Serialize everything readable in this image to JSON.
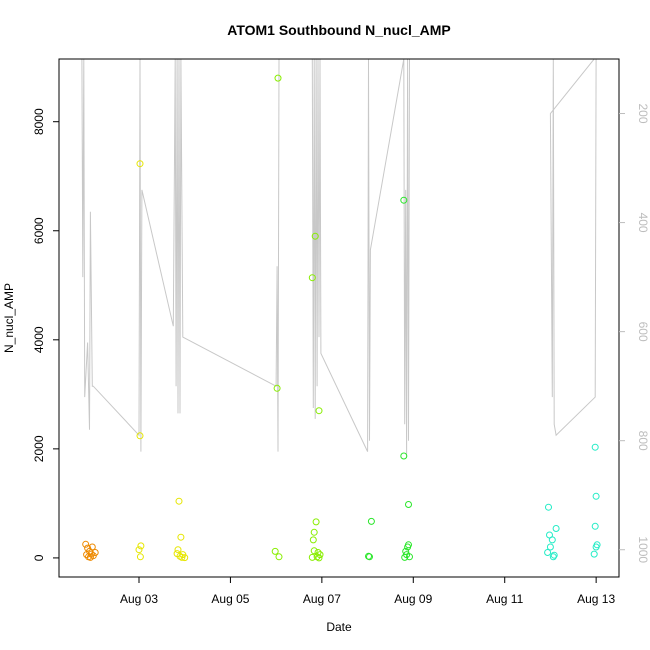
{
  "chart_data": {
    "type": "scatter",
    "title": "ATOM1 Southbound N_nucl_AMP",
    "xlabel": "Date",
    "ylabel": "N_nucl_AMP",
    "x_tick_labels": [
      "Aug 03",
      "Aug 05",
      "Aug 07",
      "Aug 09",
      "Aug 11",
      "Aug 13"
    ],
    "x_tick_dates": [
      "2019-08-03",
      "2019-08-05",
      "2019-08-07",
      "2019-08-09",
      "2019-08-11",
      "2019-08-13"
    ],
    "xlim": [
      "2019-08-01T06:00",
      "2019-08-13T12:00"
    ],
    "ylim": [
      -350,
      9150
    ],
    "y_ticks": [
      0,
      2000,
      4000,
      6000,
      8000
    ],
    "y2_ticks": [
      200,
      400,
      600,
      800,
      1000
    ],
    "y2lim": [
      1050,
      100
    ],
    "y2_reversed": true,
    "grid": false,
    "series": [
      {
        "color": "#ee8a00",
        "points": [
          [
            "2019-08-01T20:00",
            250
          ],
          [
            "2019-08-01T21:00",
            180
          ],
          [
            "2019-08-01T22:00",
            120
          ],
          [
            "2019-08-01T20:30",
            60
          ],
          [
            "2019-08-01T21:30",
            20
          ],
          [
            "2019-08-01T23:00",
            70
          ],
          [
            "2019-08-02T00:00",
            40
          ],
          [
            "2019-08-01T22:30",
            10
          ],
          [
            "2019-08-02T01:00",
            100
          ],
          [
            "2019-08-01T23:30",
            200
          ]
        ]
      },
      {
        "color": "#e6e600",
        "points": [
          [
            "2019-08-03T00:30",
            7230
          ],
          [
            "2019-08-03T00:30",
            2240
          ],
          [
            "2019-08-03T00:00",
            150
          ],
          [
            "2019-08-03T01:00",
            220
          ],
          [
            "2019-08-03T00:45",
            20
          ],
          [
            "2019-08-03T21:00",
            1040
          ],
          [
            "2019-08-03T22:00",
            380
          ],
          [
            "2019-08-03T20:00",
            80
          ],
          [
            "2019-08-03T21:30",
            30
          ],
          [
            "2019-08-03T22:30",
            10
          ],
          [
            "2019-08-03T20:30",
            150
          ],
          [
            "2019-08-03T23:00",
            60
          ],
          [
            "2019-08-04T00:00",
            5
          ]
        ]
      },
      {
        "color": "#88ee00",
        "points": [
          [
            "2019-08-06T01:00",
            8800
          ],
          [
            "2019-08-06T00:30",
            3110
          ],
          [
            "2019-08-05T23:30",
            120
          ],
          [
            "2019-08-06T01:30",
            20
          ],
          [
            "2019-08-06T19:00",
            5140
          ],
          [
            "2019-08-06T20:30",
            5900
          ],
          [
            "2019-08-06T22:30",
            2700
          ],
          [
            "2019-08-06T21:00",
            660
          ],
          [
            "2019-08-06T20:00",
            470
          ],
          [
            "2019-08-06T19:30",
            330
          ],
          [
            "2019-08-06T20:00",
            130
          ],
          [
            "2019-08-06T22:00",
            100
          ],
          [
            "2019-08-06T23:00",
            60
          ],
          [
            "2019-08-06T21:30",
            20
          ],
          [
            "2019-08-06T19:00",
            10
          ],
          [
            "2019-08-06T22:30",
            0
          ]
        ]
      },
      {
        "color": "#2ae62a",
        "points": [
          [
            "2019-08-08T00:30",
            30
          ],
          [
            "2019-08-08T01:00",
            20
          ],
          [
            "2019-08-08T02:00",
            670
          ],
          [
            "2019-08-08T19:00",
            6560
          ],
          [
            "2019-08-08T19:00",
            1870
          ],
          [
            "2019-08-08T21:30",
            980
          ],
          [
            "2019-08-08T21:00",
            200
          ],
          [
            "2019-08-08T20:00",
            120
          ],
          [
            "2019-08-08T20:30",
            60
          ],
          [
            "2019-08-08T22:00",
            20
          ],
          [
            "2019-08-08T19:30",
            10
          ],
          [
            "2019-08-08T21:30",
            240
          ]
        ]
      },
      {
        "color": "#22ecc6",
        "points": [
          [
            "2019-08-11T23:00",
            930
          ],
          [
            "2019-08-12T03:00",
            540
          ],
          [
            "2019-08-11T23:30",
            420
          ],
          [
            "2019-08-12T01:00",
            330
          ],
          [
            "2019-08-12T00:00",
            200
          ],
          [
            "2019-08-11T22:30",
            100
          ],
          [
            "2019-08-12T02:00",
            50
          ],
          [
            "2019-08-12T01:30",
            20
          ],
          [
            "2019-08-12T23:30",
            2030
          ],
          [
            "2019-08-13T00:00",
            1130
          ],
          [
            "2019-08-12T23:30",
            580
          ],
          [
            "2019-08-13T00:30",
            240
          ],
          [
            "2019-08-13T00:00",
            200
          ],
          [
            "2019-08-12T23:00",
            70
          ]
        ]
      }
    ],
    "overlay_series": {
      "axis": "right",
      "color": "#c8c8c8",
      "points": [
        [
          "2019-08-01T18:00",
          100
        ],
        [
          "2019-08-01T18:30",
          500
        ],
        [
          "2019-08-01T19:00",
          100
        ],
        [
          "2019-08-01T19:30",
          720
        ],
        [
          "2019-08-01T21:00",
          620
        ],
        [
          "2019-08-01T22:00",
          780
        ],
        [
          "2019-08-01T22:30",
          380
        ],
        [
          "2019-08-01T23:30",
          700
        ],
        [
          "2019-08-02T00:00",
          700
        ],
        [
          "2019-08-03T00:00",
          790
        ],
        [
          "2019-08-03T00:30",
          100
        ],
        [
          "2019-08-03T01:00",
          820
        ],
        [
          "2019-08-03T01:30",
          340
        ],
        [
          "2019-08-03T18:00",
          590
        ],
        [
          "2019-08-03T19:00",
          100
        ],
        [
          "2019-08-03T19:30",
          700
        ],
        [
          "2019-08-03T20:00",
          100
        ],
        [
          "2019-08-03T20:30",
          750
        ],
        [
          "2019-08-03T21:00",
          100
        ],
        [
          "2019-08-03T21:30",
          750
        ],
        [
          "2019-08-03T22:00",
          100
        ],
        [
          "2019-08-03T23:00",
          610
        ],
        [
          "2019-08-06T00:00",
          700
        ],
        [
          "2019-08-06T00:30",
          480
        ],
        [
          "2019-08-06T01:00",
          820
        ],
        [
          "2019-08-06T01:30",
          100
        ],
        [
          "2019-08-06T19:00",
          100
        ],
        [
          "2019-08-06T19:30",
          740
        ],
        [
          "2019-08-06T20:00",
          100
        ],
        [
          "2019-08-06T20:30",
          760
        ],
        [
          "2019-08-06T21:00",
          100
        ],
        [
          "2019-08-06T21:30",
          700
        ],
        [
          "2019-08-06T22:00",
          100
        ],
        [
          "2019-08-06T22:30",
          610
        ],
        [
          "2019-08-06T23:00",
          100
        ],
        [
          "2019-08-06T23:30",
          640
        ],
        [
          "2019-08-08T00:00",
          820
        ],
        [
          "2019-08-08T00:30",
          100
        ],
        [
          "2019-08-08T01:00",
          800
        ],
        [
          "2019-08-08T01:30",
          450
        ],
        [
          "2019-08-08T19:00",
          100
        ],
        [
          "2019-08-08T19:30",
          770
        ],
        [
          "2019-08-08T20:00",
          340
        ],
        [
          "2019-08-08T20:30",
          830
        ],
        [
          "2019-08-08T21:00",
          100
        ],
        [
          "2019-08-08T21:30",
          800
        ],
        [
          "2019-08-08T22:00",
          100
        ],
        [
          "2019-08-12T23:00",
          100
        ],
        [
          "2019-08-12T00:00",
          200
        ],
        [
          "2019-08-12T01:00",
          720
        ],
        [
          "2019-08-12T01:30",
          100
        ],
        [
          "2019-08-12T02:00",
          770
        ],
        [
          "2019-08-12T03:00",
          790
        ],
        [
          "2019-08-12T23:30",
          720
        ],
        [
          "2019-08-13T00:00",
          100
        ],
        [
          "2019-08-13T00:30",
          100
        ]
      ]
    }
  }
}
